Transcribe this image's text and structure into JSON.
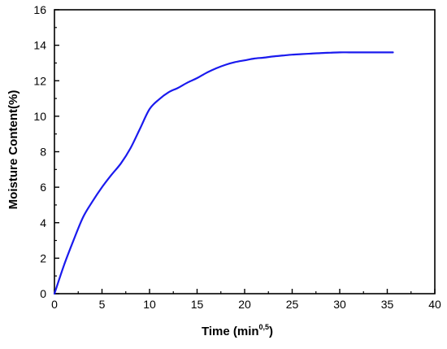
{
  "chart_data": {
    "type": "line",
    "title": "",
    "xlabel": {
      "prefix": "Time (min",
      "superscript": "0,5",
      "suffix": ")"
    },
    "ylabel": "Moisture Content(%)",
    "xlim": [
      0,
      40
    ],
    "ylim": [
      0,
      16
    ],
    "xticks": [
      0,
      5,
      10,
      15,
      20,
      25,
      30,
      35,
      40
    ],
    "yticks": [
      0,
      2,
      4,
      6,
      8,
      10,
      12,
      14,
      16
    ],
    "grid": false,
    "legend": "none",
    "series": [
      {
        "color": "#1a1aee",
        "x": [
          0,
          1,
          2,
          3,
          4,
          5,
          6,
          7,
          8,
          9,
          10,
          11,
          12,
          13,
          14,
          15,
          16,
          17,
          18,
          19,
          20,
          21,
          22,
          23,
          24,
          25,
          26,
          27,
          28,
          29,
          30,
          31,
          32,
          33,
          34,
          35,
          35.6
        ],
        "y": [
          0,
          1.6,
          3.0,
          4.3,
          5.2,
          6.0,
          6.7,
          7.35,
          8.2,
          9.3,
          10.4,
          10.95,
          11.35,
          11.6,
          11.9,
          12.15,
          12.45,
          12.7,
          12.9,
          13.05,
          13.15,
          13.25,
          13.3,
          13.37,
          13.42,
          13.47,
          13.5,
          13.53,
          13.56,
          13.58,
          13.6,
          13.6,
          13.6,
          13.6,
          13.6,
          13.6,
          13.6
        ]
      }
    ]
  }
}
